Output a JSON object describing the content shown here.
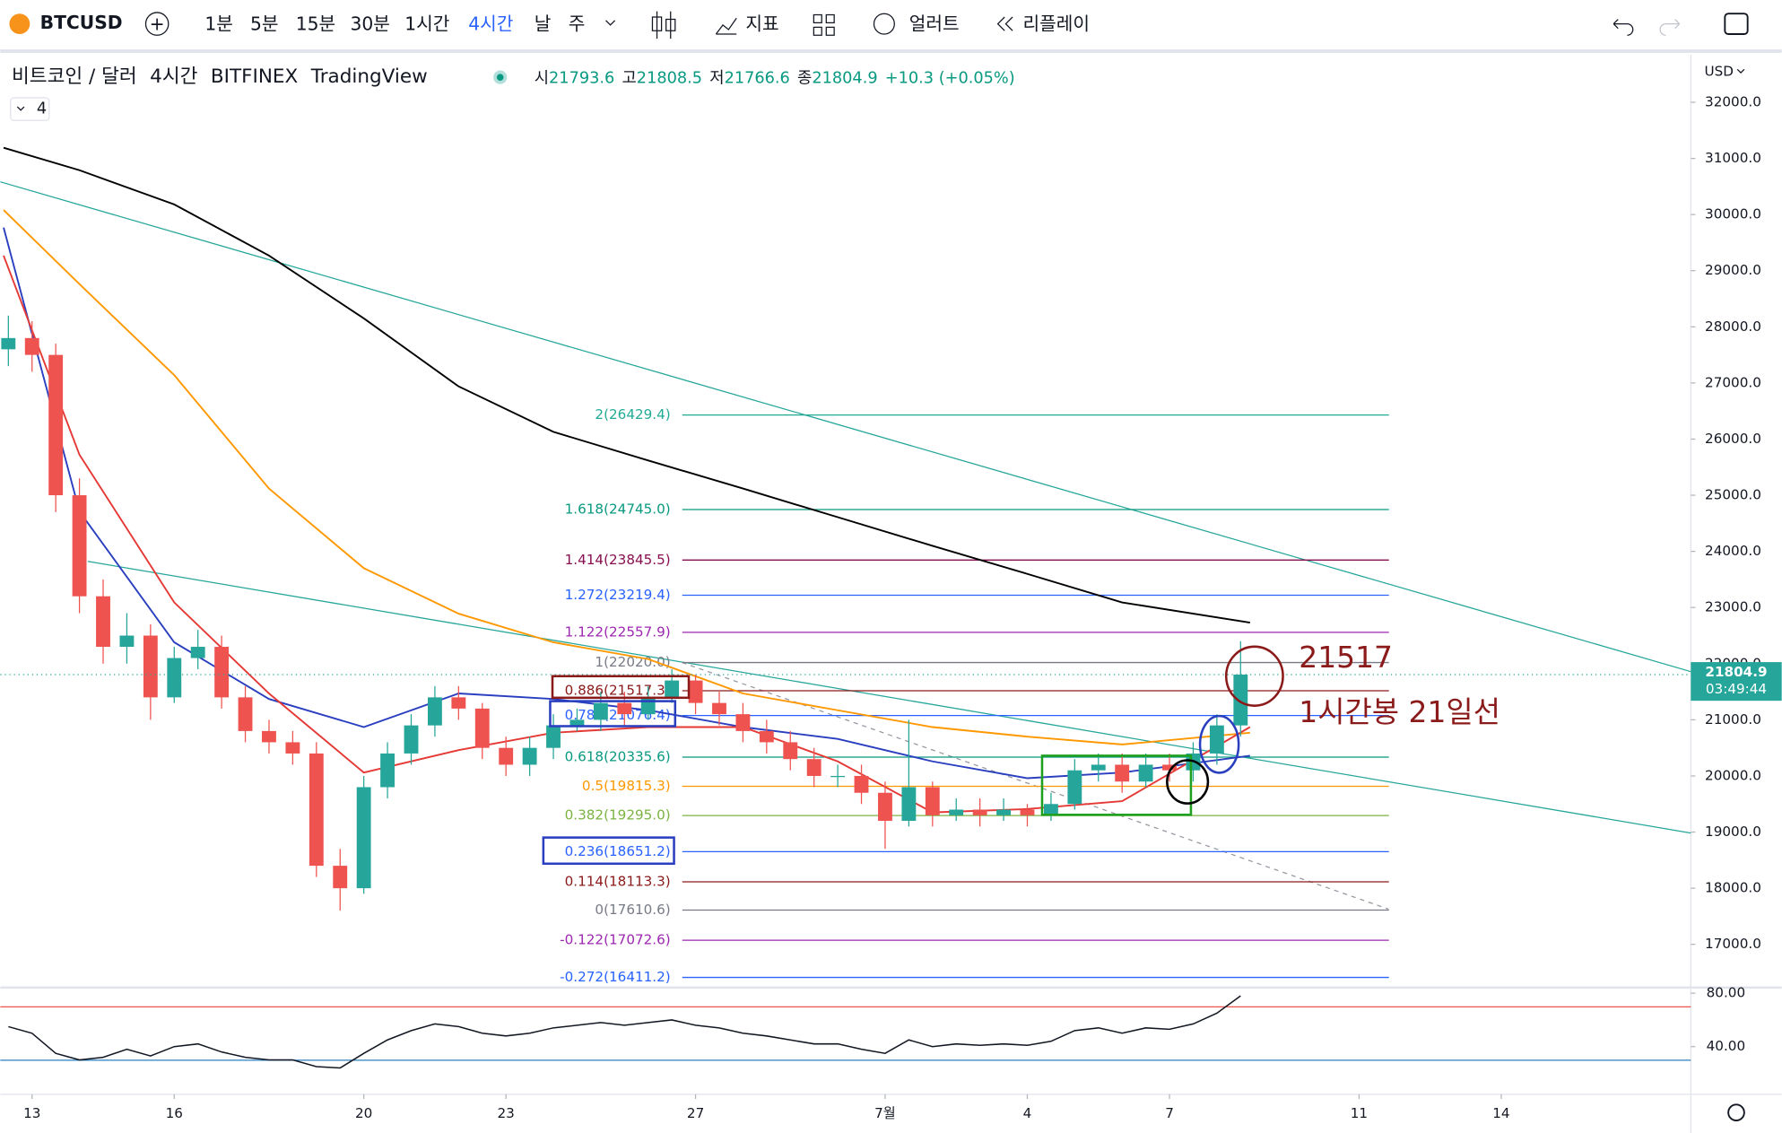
{
  "toolbar": {
    "symbol": "BTCUSD",
    "intervals": [
      "1분",
      "5분",
      "15분",
      "30분",
      "1시간",
      "4시간"
    ],
    "day": "날",
    "week": "주",
    "indicators": "지표",
    "alerts": "얼러트",
    "replay": "리플레이"
  },
  "legend": {
    "name": "비트코인 / 달러",
    "interval": "4시간",
    "exchange": "BITFINEX",
    "source": "TradingView",
    "open_label": "시",
    "open": 21793.6,
    "high_label": "고",
    "high": 21808.5,
    "low_label": "저",
    "low": 21766.6,
    "close_label": "종",
    "close": 21804.9,
    "change": "+10.3 (+0.05%)",
    "indicator_count": "4"
  },
  "price_axis": {
    "currency": "USD"
  },
  "chart_data": {
    "type": "candlestick",
    "up_color": "#26a69a",
    "down_color": "#ef5350",
    "x": [
      -0.5,
      0,
      0.5,
      1,
      1.5,
      2,
      2.5,
      3,
      3.5,
      4,
      4.5,
      5,
      5.5,
      6,
      6.5,
      7,
      7.5,
      8,
      8.5,
      9,
      9.5,
      10,
      10.5,
      11,
      11.5,
      12,
      12.5,
      13,
      13.5,
      14,
      14.5,
      15,
      15.5,
      16,
      16.5,
      17,
      17.5,
      18,
      18.5,
      19,
      19.5,
      20,
      20.5,
      21,
      21.5,
      22,
      22.5,
      23,
      23.5,
      24,
      24.5,
      25,
      25.5
    ],
    "open": [
      27600,
      27800,
      27500,
      25000,
      23200,
      22300,
      22500,
      21400,
      22100,
      22300,
      21400,
      20800,
      20600,
      20400,
      18400,
      18000,
      19800,
      20400,
      20900,
      21400,
      21200,
      20500,
      20200,
      20500,
      20900,
      21000,
      21300,
      21100,
      21400,
      21700,
      21300,
      21100,
      20800,
      20600,
      20300,
      20000,
      20000,
      19700,
      19200,
      19800,
      19300,
      19400,
      19300,
      19400,
      19300,
      19500,
      20100,
      20200,
      19900,
      20200,
      20100,
      20400,
      20900
    ],
    "high": [
      28200,
      28100,
      27700,
      25300,
      23500,
      22900,
      22700,
      22300,
      22600,
      22500,
      21600,
      21000,
      20800,
      20600,
      18700,
      20000,
      20600,
      21100,
      21600,
      21600,
      21300,
      20700,
      20700,
      21100,
      21200,
      21500,
      21500,
      21600,
      21900,
      21800,
      21500,
      21300,
      21000,
      20800,
      20500,
      20200,
      20200,
      19900,
      21000,
      19900,
      19600,
      19600,
      19600,
      19500,
      19700,
      20300,
      20400,
      20400,
      20400,
      20400,
      20600,
      21100,
      22400
    ],
    "low": [
      27300,
      27200,
      24700,
      22900,
      22000,
      22000,
      21000,
      21300,
      21900,
      21200,
      20600,
      20400,
      20200,
      18200,
      17600,
      17900,
      19600,
      20200,
      20700,
      21000,
      20300,
      20000,
      20000,
      20300,
      20800,
      20800,
      20900,
      21000,
      21300,
      21100,
      20900,
      20600,
      20400,
      20100,
      19800,
      19800,
      19500,
      18700,
      19100,
      19100,
      19200,
      19100,
      19200,
      19100,
      19200,
      19400,
      19900,
      19700,
      19800,
      19900,
      19900,
      20200,
      20700
    ],
    "close": [
      27800,
      27500,
      25000,
      23200,
      22300,
      22500,
      21400,
      22100,
      22300,
      21400,
      20800,
      20600,
      20400,
      18400,
      18000,
      19800,
      20400,
      20900,
      21400,
      21200,
      20500,
      20200,
      20500,
      20900,
      21000,
      21300,
      21100,
      21400,
      21700,
      21300,
      21100,
      20800,
      20600,
      20300,
      20000,
      20000,
      19700,
      19200,
      19800,
      19300,
      19400,
      19300,
      19400,
      19300,
      19500,
      20100,
      20200,
      19900,
      20200,
      20100,
      20400,
      20900,
      21804.9
    ],
    "xlim": [
      -0.67,
      35
    ],
    "xticks": [
      {
        "value": 0,
        "label": "13"
      },
      {
        "value": 3,
        "label": "16"
      },
      {
        "value": 7,
        "label": "20"
      },
      {
        "value": 10,
        "label": "23"
      },
      {
        "value": 14,
        "label": "27"
      },
      {
        "value": 18,
        "label": "7월"
      },
      {
        "value": 21,
        "label": "4"
      },
      {
        "value": 24,
        "label": "7"
      },
      {
        "value": 28,
        "label": "11"
      },
      {
        "value": 31,
        "label": "14"
      }
    ],
    "ylim": [
      16251,
      32850
    ],
    "yticks": [
      {
        "value": 17000,
        "label": "17000.0"
      },
      {
        "value": 18000,
        "label": "18000.0"
      },
      {
        "value": 19000,
        "label": "19000.0"
      },
      {
        "value": 20000,
        "label": "20000.0"
      },
      {
        "value": 21000,
        "label": "21000.0"
      },
      {
        "value": 22000,
        "label": "22000.0"
      },
      {
        "value": 23000,
        "label": "23000.0"
      },
      {
        "value": 24000,
        "label": "24000.0"
      },
      {
        "value": 25000,
        "label": "25000.0"
      },
      {
        "value": 26000,
        "label": "26000.0"
      },
      {
        "value": 27000,
        "label": "27000.0"
      },
      {
        "value": 28000,
        "label": "28000.0"
      },
      {
        "value": 29000,
        "label": "29000.0"
      },
      {
        "value": 30000,
        "label": "30000.0"
      },
      {
        "value": 31000,
        "label": "31000.0"
      },
      {
        "value": 32000,
        "label": "32000.0"
      }
    ],
    "grid": false,
    "moving_averages": [
      {
        "color": "#000000",
        "x": [
          -0.6,
          1,
          3,
          5,
          7,
          9,
          11,
          13,
          15,
          17,
          19,
          21,
          23,
          25.7
        ],
        "values": [
          31190,
          30790,
          30180,
          29270,
          28150,
          26940,
          26130,
          25620,
          25120,
          24610,
          24100,
          23600,
          23090,
          22730
        ]
      },
      {
        "color": "#ff9800",
        "x": [
          -0.6,
          1,
          3,
          5,
          7,
          9,
          11,
          13,
          15,
          17,
          19,
          21,
          23,
          25.7
        ],
        "values": [
          30080,
          28760,
          27140,
          25120,
          23700,
          22890,
          22380,
          22080,
          21470,
          21170,
          20870,
          20700,
          20560,
          20770
        ]
      },
      {
        "color": "#2a3fbf",
        "x": [
          -0.6,
          1,
          3,
          5,
          7,
          9,
          11,
          13,
          15,
          17,
          19,
          21,
          23,
          25.7
        ],
        "values": [
          29770,
          24710,
          22380,
          21370,
          20870,
          21470,
          21370,
          21170,
          20870,
          20660,
          20260,
          19960,
          20060,
          20360
        ]
      },
      {
        "color": "#e53935",
        "x": [
          -0.6,
          1,
          3,
          5,
          7,
          9,
          11,
          13,
          15,
          17,
          19,
          21,
          23,
          25.7
        ],
        "values": [
          29270,
          25720,
          23090,
          21470,
          20060,
          20460,
          20770,
          20870,
          20870,
          20260,
          19350,
          19410,
          19550,
          20870
        ]
      }
    ],
    "fib_levels": [
      {
        "value": 26429.4,
        "label": "2(26429.4)",
        "color": "#22ab94"
      },
      {
        "value": 24745.0,
        "label": "1.618(24745.0)",
        "color": "#089981"
      },
      {
        "value": 23845.5,
        "label": "1.414(23845.5)",
        "color": "#880e4f"
      },
      {
        "value": 23219.4,
        "label": "1.272(23219.4)",
        "color": "#2962ff"
      },
      {
        "value": 22557.9,
        "label": "1.122(22557.9)",
        "color": "#9c27b0"
      },
      {
        "value": 22020.0,
        "label": "1(22020.0)",
        "color": "#787b86"
      },
      {
        "value": 21517.3,
        "label": "0.886(21517.3)",
        "color": "#8b1a1a"
      },
      {
        "value": 21076.4,
        "label": "0.786(21076.4)",
        "color": "#2962ff"
      },
      {
        "value": 20335.6,
        "label": "0.618(20335.6)",
        "color": "#089981"
      },
      {
        "value": 19815.3,
        "label": "0.5(19815.3)",
        "color": "#ff9800"
      },
      {
        "value": 19295.0,
        "label": "0.382(19295.0)",
        "color": "#7cb342"
      },
      {
        "value": 18651.2,
        "label": "0.236(18651.2)",
        "color": "#2962ff"
      },
      {
        "value": 18113.3,
        "label": "0.114(18113.3)",
        "color": "#8b1a1a"
      },
      {
        "value": 17610.6,
        "label": "0(17610.6)",
        "color": "#787b86"
      },
      {
        "value": 17072.6,
        "label": "-0.122(17072.6)",
        "color": "#9c27b0"
      },
      {
        "value": 16411.2,
        "label": "-0.272(16411.2)",
        "color": "#2962ff"
      }
    ],
    "countdown": "03:49:44",
    "annotations": [
      "21517",
      "1시간봉 21일선"
    ],
    "rsi": {
      "color": "#131722",
      "ylim": [
        6.8,
        83.4
      ],
      "yticks": [
        {
          "value": 80,
          "label": "80.00"
        },
        {
          "value": 40,
          "label": "40.00"
        }
      ],
      "values": [
        55,
        50,
        35,
        30,
        32,
        38,
        33,
        40,
        42,
        36,
        32,
        30,
        30,
        25,
        24,
        35,
        45,
        52,
        57,
        55,
        50,
        48,
        50,
        54,
        56,
        58,
        56,
        58,
        60,
        56,
        54,
        50,
        48,
        45,
        42,
        42,
        38,
        35,
        45,
        40,
        42,
        41,
        42,
        41,
        44,
        52,
        54,
        50,
        54,
        53,
        57,
        65,
        78
      ]
    }
  }
}
